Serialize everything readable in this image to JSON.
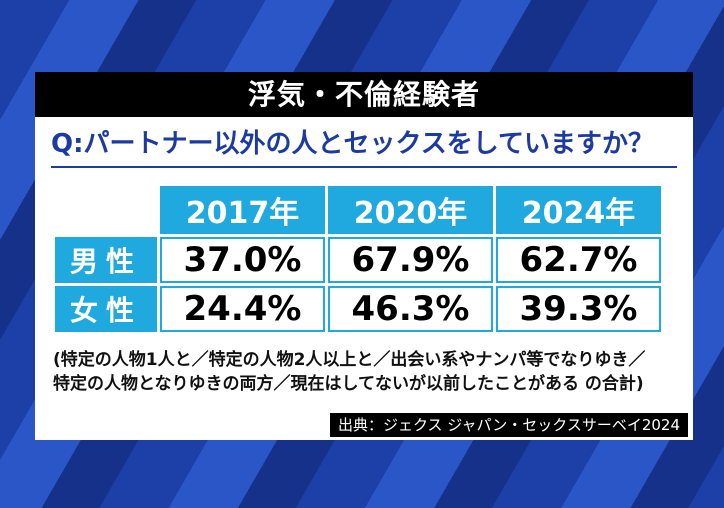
{
  "title": "浮気・不倫経験者",
  "question": "Q:パートナー以外の人とセックスをしていますか？",
  "chart_data": {
    "type": "table",
    "columns": [
      "2017年",
      "2020年",
      "2024年"
    ],
    "rows": [
      {
        "label": "男性",
        "values": [
          "37.0%",
          "67.9%",
          "62.7%"
        ]
      },
      {
        "label": "女性",
        "values": [
          "24.4%",
          "46.3%",
          "39.3%"
        ]
      }
    ]
  },
  "note_lines": [
    "(特定の人物1人と／特定の人物2人以上と／出会い系やナンパ等でなりゆき／",
    "特定の人物となりゆきの両方／現在はしてないが以前したことがある の合計)"
  ],
  "source": "出典：ジェクス ジャパン・セックスサーベイ2024",
  "colors": {
    "accent": "#1fa9de",
    "question": "#1c3aa0",
    "background": "#2a56c8"
  }
}
